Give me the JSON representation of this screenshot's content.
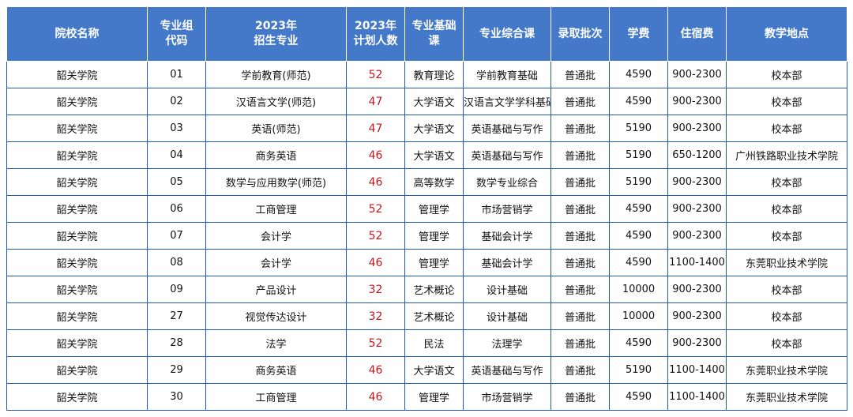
{
  "headers": [
    "院校名称",
    "专业组\n代码",
    "2023年\n招生专业",
    "2023年\n计划人数",
    "专业基础\n课",
    "专业综合课",
    "录取批次",
    "学费",
    "住宿费",
    "教学地点"
  ],
  "rows": [
    [
      "韶关学院",
      "01",
      "学前教育(师范)",
      "52",
      "教育理论",
      "学前教育基础",
      "普通批",
      "4590",
      "900-2300",
      "校本部"
    ],
    [
      "韶关学院",
      "02",
      "汉语言文学(师范)",
      "47",
      "大学语文",
      "汉语言文学学科基础",
      "普通批",
      "4590",
      "900-2300",
      "校本部"
    ],
    [
      "韶关学院",
      "03",
      "英语(师范)",
      "47",
      "大学语文",
      "英语基础与写作",
      "普通批",
      "5190",
      "900-2300",
      "校本部"
    ],
    [
      "韶关学院",
      "04",
      "商务英语",
      "46",
      "大学语文",
      "英语基础与写作",
      "普通批",
      "5190",
      "650-1200",
      "广州铁路职业技术学院"
    ],
    [
      "韶关学院",
      "05",
      "数学与应用数学(师范)",
      "46",
      "高等数学",
      "数学专业综合",
      "普通批",
      "5190",
      "900-2300",
      "校本部"
    ],
    [
      "韶关学院",
      "06",
      "工商管理",
      "52",
      "管理学",
      "市场营销学",
      "普通批",
      "4590",
      "900-2300",
      "校本部"
    ],
    [
      "韶关学院",
      "07",
      "会计学",
      "52",
      "管理学",
      "基础会计学",
      "普通批",
      "4590",
      "900-2300",
      "校本部"
    ],
    [
      "韶关学院",
      "08",
      "会计学",
      "46",
      "管理学",
      "基础会计学",
      "普通批",
      "4590",
      "1100-1400",
      "东莞职业技术学院"
    ],
    [
      "韶关学院",
      "09",
      "产品设计",
      "32",
      "艺术概论",
      "设计基础",
      "普通批",
      "10000",
      "900-2300",
      "校本部"
    ],
    [
      "韶关学院",
      "27",
      "视觉传达设计",
      "32",
      "艺术概论",
      "设计基础",
      "普通批",
      "10000",
      "900-2300",
      "校本部"
    ],
    [
      "韶关学院",
      "28",
      "法学",
      "52",
      "民法",
      "法理学",
      "普通批",
      "4590",
      "900-2300",
      "校本部"
    ],
    [
      "韶关学院",
      "29",
      "商务英语",
      "46",
      "大学语文",
      "英语基础与写作",
      "普通批",
      "5190",
      "1100-1400",
      "东莞职业技术学院"
    ],
    [
      "韶关学院",
      "30",
      "工商管理",
      "46",
      "管理学",
      "市场营销学",
      "普通批",
      "4590",
      "1100-1400",
      "东莞职业技术学院"
    ]
  ]
}
